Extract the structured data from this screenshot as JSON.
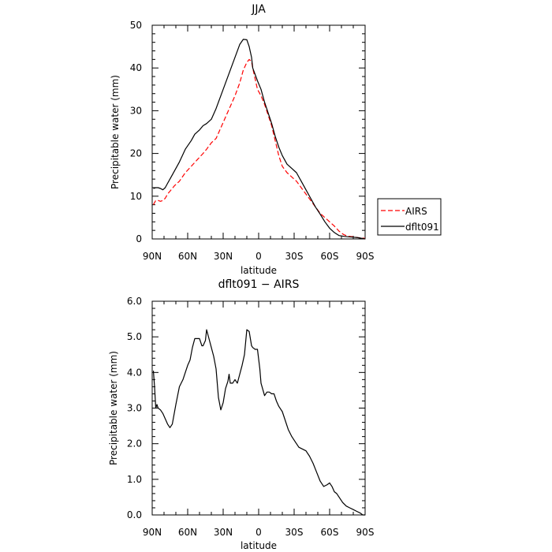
{
  "chart_data": [
    {
      "type": "line",
      "title": "JJA",
      "xlabel": "latitude",
      "ylabel": "Precipitable water (mm)",
      "x_unit": "degrees latitude (positive = N, negative = S)",
      "xlim": [
        90,
        -90
      ],
      "ylim": [
        0,
        50
      ],
      "xticks": [
        90,
        60,
        30,
        0,
        -30,
        -60,
        -90
      ],
      "xticklabels": [
        "90N",
        "60N",
        "30N",
        "0",
        "30S",
        "60S",
        "90S"
      ],
      "yticks": [
        0,
        10,
        20,
        30,
        40,
        50
      ],
      "yticklabels": [
        "0",
        "10",
        "20",
        "30",
        "40",
        "50"
      ],
      "legend": {
        "placement": "right",
        "entries": [
          "AIRS",
          "dflt091"
        ]
      },
      "series": [
        {
          "name": "AIRS",
          "color": "#ff0000",
          "dash": "dashed",
          "x": [
            89,
            87,
            85,
            83,
            81,
            79,
            77,
            74,
            71,
            67,
            62,
            57,
            52,
            47,
            44,
            40,
            36,
            32,
            28,
            24,
            20,
            16,
            13,
            10,
            8,
            6,
            5,
            3,
            1,
            -2,
            -5,
            -8,
            -11,
            -14,
            -17,
            -20,
            -24,
            -28,
            -32,
            -36,
            -40,
            -44,
            -48,
            -52,
            -56,
            -60,
            -64,
            -68,
            -72,
            -76,
            -80,
            -84,
            -88,
            -90
          ],
          "y": [
            8,
            9,
            9,
            8.8,
            9,
            9.5,
            10.5,
            11.5,
            12.5,
            13.5,
            15.5,
            17,
            18.5,
            20,
            21,
            22.5,
            23.5,
            26,
            28.5,
            31,
            33.5,
            36.5,
            39.5,
            41.3,
            42,
            41.5,
            40,
            37.5,
            35,
            33.5,
            31.5,
            29,
            26.5,
            23,
            19.5,
            17,
            15.5,
            14.5,
            13.5,
            12,
            10.5,
            9,
            7.5,
            6,
            5,
            4,
            3,
            1.8,
            1,
            0.6,
            0.5,
            0.3,
            0.2,
            0.1
          ]
        },
        {
          "name": "dflt091",
          "color": "#000000",
          "dash": "solid",
          "x": [
            89,
            87,
            85,
            83,
            81,
            79,
            77,
            74,
            71,
            67,
            62,
            57,
            54,
            50,
            47,
            44,
            40,
            36,
            32,
            28,
            24,
            20,
            16,
            13,
            10,
            8,
            6,
            5,
            3,
            1,
            -2,
            -5,
            -8,
            -11,
            -14,
            -17,
            -20,
            -24,
            -28,
            -32,
            -36,
            -40,
            -44,
            -48,
            -52,
            -56,
            -60,
            -64,
            -68,
            -72,
            -76,
            -80,
            -84,
            -88,
            -90
          ],
          "y": [
            11.8,
            12,
            12,
            11.8,
            11.5,
            12,
            13,
            14.5,
            16,
            18,
            21,
            23,
            24.5,
            25.5,
            26.5,
            27,
            28,
            30.5,
            33.5,
            36.5,
            39.5,
            42.5,
            45.5,
            46.7,
            46.6,
            45,
            42.5,
            40,
            38.5,
            37,
            35,
            32,
            29.5,
            27,
            24,
            21.5,
            19.5,
            17.5,
            16.5,
            15.5,
            13.5,
            11.5,
            9.5,
            7.5,
            5.8,
            4,
            2.5,
            1.5,
            0.8,
            0.6,
            0.5,
            0.4,
            0.3,
            0.1,
            0
          ]
        }
      ]
    },
    {
      "type": "line",
      "title": "dflt091 − AIRS",
      "xlabel": "latitude",
      "ylabel": "Precipitable water (mm)",
      "x_unit": "degrees latitude (positive = N, negative = S)",
      "xlim": [
        90,
        -90
      ],
      "ylim": [
        0,
        6
      ],
      "xticks": [
        90,
        60,
        30,
        0,
        -30,
        -60,
        -90
      ],
      "xticklabels": [
        "90N",
        "60N",
        "30N",
        "0",
        "30S",
        "60S",
        "90S"
      ],
      "yticks": [
        0,
        1,
        2,
        3,
        4,
        5,
        6
      ],
      "yticklabels": [
        "0.0",
        "1.0",
        "2.0",
        "3.0",
        "4.0",
        "5.0",
        "6.0"
      ],
      "series": [
        {
          "color": "#000000",
          "dash": "solid",
          "x": [
            89,
            88,
            87,
            86,
            85,
            83,
            81,
            79,
            77,
            75,
            73,
            70,
            67,
            64,
            62,
            60,
            58,
            56,
            54,
            52,
            50,
            48,
            47,
            45,
            44,
            42,
            40,
            38,
            36,
            34,
            32,
            30,
            28,
            26,
            25,
            24,
            22,
            20,
            18,
            16,
            14,
            12,
            10,
            8,
            6,
            5,
            3,
            1,
            -1,
            -2,
            -5,
            -7,
            -9,
            -11,
            -13,
            -15,
            -17,
            -20,
            -22,
            -25,
            -28,
            -31,
            -34,
            -37,
            -40,
            -43,
            -46,
            -49,
            -52,
            -55,
            -58,
            -60,
            -62,
            -64,
            -66,
            -68,
            -71,
            -74,
            -77,
            -80,
            -83,
            -86,
            -88,
            -90
          ],
          "y": [
            4.05,
            3.6,
            3.0,
            3.1,
            3.0,
            2.95,
            2.85,
            2.7,
            2.55,
            2.45,
            2.55,
            3.1,
            3.6,
            3.8,
            4.0,
            4.2,
            4.35,
            4.7,
            4.95,
            4.95,
            4.95,
            4.75,
            4.75,
            4.9,
            5.2,
            4.95,
            4.7,
            4.45,
            4.1,
            3.3,
            2.95,
            3.15,
            3.55,
            3.75,
            3.95,
            3.7,
            3.7,
            3.8,
            3.7,
            3.95,
            4.2,
            4.5,
            5.2,
            5.15,
            4.75,
            4.7,
            4.65,
            4.65,
            4.1,
            3.7,
            3.35,
            3.45,
            3.45,
            3.4,
            3.4,
            3.2,
            3.05,
            2.9,
            2.7,
            2.4,
            2.2,
            2.05,
            1.9,
            1.85,
            1.8,
            1.65,
            1.45,
            1.2,
            0.95,
            0.8,
            0.85,
            0.9,
            0.8,
            0.65,
            0.6,
            0.5,
            0.35,
            0.25,
            0.2,
            0.15,
            0.1,
            0.05,
            0.0,
            0.0
          ]
        }
      ]
    }
  ]
}
